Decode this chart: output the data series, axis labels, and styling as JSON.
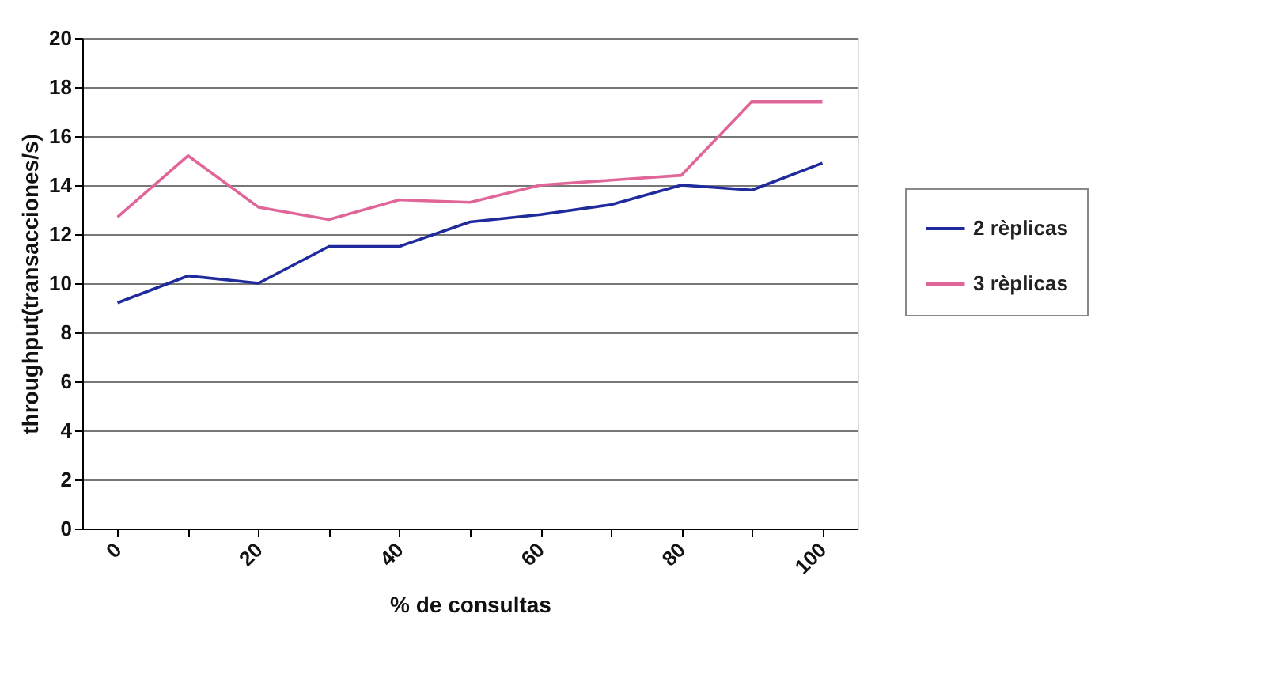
{
  "chart_data": {
    "type": "line",
    "xlabel": "% de consultas",
    "ylabel": "throughput(transacciones/s)",
    "categories": [
      "0",
      null,
      "20",
      null,
      "40",
      null,
      "60",
      null,
      "80",
      null,
      "100"
    ],
    "series": [
      {
        "name": "2 rèplicas",
        "color": "#1f2a9c",
        "values": [
          9.2,
          10.3,
          10.0,
          11.5,
          11.5,
          12.5,
          12.8,
          13.2,
          14.0,
          13.8,
          14.9
        ]
      },
      {
        "name": "3 rèplicas",
        "color": "#e0669a",
        "values": [
          12.7,
          15.2,
          13.1,
          12.6,
          13.4,
          13.3,
          14.0,
          14.2,
          14.4,
          17.4,
          17.4
        ]
      }
    ],
    "ylim": [
      0,
      20
    ],
    "yticks": [
      0,
      2,
      4,
      6,
      8,
      10,
      12,
      14,
      16,
      18,
      20
    ],
    "grid": "y",
    "legend": "right",
    "marker": "none",
    "line_style": "solid"
  }
}
